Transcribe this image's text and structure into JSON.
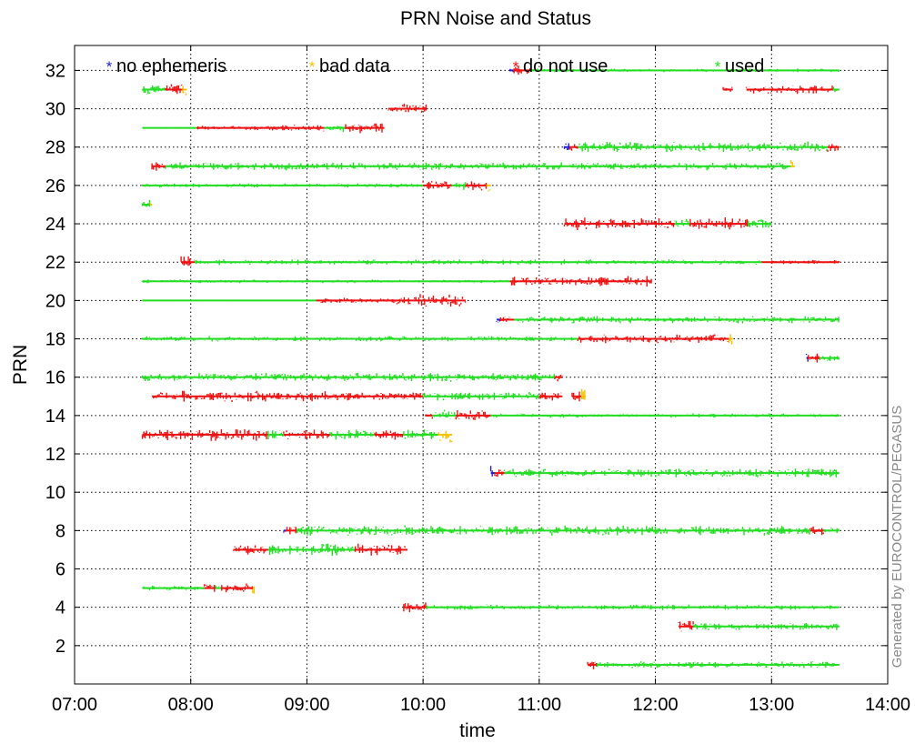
{
  "chart_data": {
    "type": "scatter",
    "title": "PRN Noise and Status",
    "xlabel": "time",
    "ylabel": "PRN",
    "credit": "Generated by EUROCONTROL/PEGASUS",
    "xlim": [
      7.0,
      14.0
    ],
    "ylim": [
      0,
      33.3
    ],
    "x_ticks": [
      "07:00",
      "08:00",
      "09:00",
      "10:00",
      "11:00",
      "12:00",
      "13:00",
      "14:00"
    ],
    "x_tick_hours": [
      7,
      8,
      9,
      10,
      11,
      12,
      13,
      14
    ],
    "y_ticks": [
      2,
      4,
      6,
      8,
      10,
      12,
      14,
      16,
      18,
      20,
      22,
      24,
      26,
      28,
      30,
      32
    ],
    "grid": true,
    "legend_position": "top",
    "colors": {
      "no ephemeris": "#1f1fd6",
      "bad data": "#f5c200",
      "do not use": "#ee1111",
      "used": "#22dd22"
    },
    "series": [
      {
        "name": "no ephemeris",
        "marker": "*"
      },
      {
        "name": "bad data",
        "marker": "*"
      },
      {
        "name": "do not use",
        "marker": "*"
      },
      {
        "name": "used",
        "marker": "*"
      }
    ],
    "tracks": [
      {
        "prn": 32,
        "segments": [
          {
            "start": "10:45",
            "end": "10:47",
            "status": "no ephemeris",
            "noise": 0.25
          },
          {
            "start": "10:47",
            "end": "10:56",
            "status": "do not use",
            "noise": 0.35
          },
          {
            "start": "10:56",
            "end": "13:35",
            "status": "used",
            "noise": 0.1
          }
        ]
      },
      {
        "prn": 31,
        "segments": [
          {
            "start": "07:35",
            "end": "07:47",
            "status": "used",
            "noise": 0.35
          },
          {
            "start": "07:47",
            "end": "07:56",
            "status": "do not use",
            "noise": 0.35
          },
          {
            "start": "07:56",
            "end": "07:58",
            "status": "bad data",
            "noise": 0.5
          },
          {
            "start": "12:35",
            "end": "12:40",
            "status": "do not use",
            "noise": 0.2
          },
          {
            "start": "12:47",
            "end": "13:32",
            "status": "do not use",
            "noise": 0.25
          },
          {
            "start": "13:32",
            "end": "13:35",
            "status": "used",
            "noise": 0.2
          }
        ]
      },
      {
        "prn": 30,
        "segments": [
          {
            "start": "09:42",
            "end": "10:02",
            "status": "do not use",
            "noise": 0.3
          }
        ]
      },
      {
        "prn": 29,
        "segments": [
          {
            "start": "07:35",
            "end": "08:03",
            "status": "used",
            "noise": 0.05
          },
          {
            "start": "08:03",
            "end": "08:40",
            "status": "do not use",
            "noise": 0.12
          },
          {
            "start": "08:40",
            "end": "09:09",
            "status": "do not use",
            "noise": 0.2
          },
          {
            "start": "09:09",
            "end": "09:20",
            "status": "used",
            "noise": 0.25
          },
          {
            "start": "09:20",
            "end": "09:40",
            "status": "do not use",
            "noise": 0.3
          }
        ]
      },
      {
        "prn": 28,
        "segments": [
          {
            "start": "11:13",
            "end": "11:16",
            "status": "no ephemeris",
            "noise": 0.25
          },
          {
            "start": "11:16",
            "end": "11:20",
            "status": "do not use",
            "noise": 0.25
          },
          {
            "start": "11:20",
            "end": "13:29",
            "status": "used",
            "noise": 0.3
          },
          {
            "start": "13:29",
            "end": "13:35",
            "status": "do not use",
            "noise": 0.3
          }
        ]
      },
      {
        "prn": 27,
        "segments": [
          {
            "start": "07:40",
            "end": "07:47",
            "status": "do not use",
            "noise": 0.3
          },
          {
            "start": "07:47",
            "end": "13:10",
            "status": "used",
            "noise": 0.22
          },
          {
            "start": "13:10",
            "end": "13:12",
            "status": "bad data",
            "noise": 0.5
          }
        ]
      },
      {
        "prn": 26,
        "segments": [
          {
            "start": "07:35",
            "end": "10:00",
            "status": "used",
            "noise": 0.12
          },
          {
            "start": "10:00",
            "end": "10:15",
            "status": "do not use",
            "noise": 0.25
          },
          {
            "start": "10:15",
            "end": "10:22",
            "status": "used",
            "noise": 0.25
          },
          {
            "start": "10:22",
            "end": "10:33",
            "status": "do not use",
            "noise": 0.3
          },
          {
            "start": "10:33",
            "end": "10:35",
            "status": "bad data",
            "noise": 0.5
          }
        ]
      },
      {
        "prn": 25,
        "segments": [
          {
            "start": "07:35",
            "end": "07:39",
            "status": "used",
            "noise": 0.25
          },
          {
            "start": "07:39",
            "end": "07:40",
            "status": "bad data",
            "noise": 0.35
          }
        ]
      },
      {
        "prn": 24,
        "segments": [
          {
            "start": "11:13",
            "end": "12:10",
            "status": "do not use",
            "noise": 0.35
          },
          {
            "start": "12:10",
            "end": "12:18",
            "status": "used",
            "noise": 0.35
          },
          {
            "start": "12:18",
            "end": "12:48",
            "status": "do not use",
            "noise": 0.35
          },
          {
            "start": "12:48",
            "end": "13:00",
            "status": "used",
            "noise": 0.3
          }
        ]
      },
      {
        "prn": 22,
        "segments": [
          {
            "start": "07:55",
            "end": "08:02",
            "status": "do not use",
            "noise": 0.35
          },
          {
            "start": "08:02",
            "end": "12:55",
            "status": "used",
            "noise": 0.15
          },
          {
            "start": "12:55",
            "end": "13:35",
            "status": "do not use",
            "noise": 0.12
          }
        ]
      },
      {
        "prn": 21,
        "segments": [
          {
            "start": "07:35",
            "end": "10:45",
            "status": "used",
            "noise": 0.1
          },
          {
            "start": "10:45",
            "end": "11:58",
            "status": "do not use",
            "noise": 0.3
          }
        ]
      },
      {
        "prn": 20,
        "segments": [
          {
            "start": "07:35",
            "end": "09:05",
            "status": "used",
            "noise": 0.05
          },
          {
            "start": "09:05",
            "end": "09:45",
            "status": "do not use",
            "noise": 0.15
          },
          {
            "start": "09:45",
            "end": "10:22",
            "status": "do not use",
            "noise": 0.35
          }
        ]
      },
      {
        "prn": 19,
        "segments": [
          {
            "start": "10:38",
            "end": "10:40",
            "status": "no ephemeris",
            "noise": 0.25
          },
          {
            "start": "10:40",
            "end": "10:47",
            "status": "do not use",
            "noise": 0.25
          },
          {
            "start": "10:47",
            "end": "13:35",
            "status": "used",
            "noise": 0.2
          }
        ]
      },
      {
        "prn": 18,
        "segments": [
          {
            "start": "07:35",
            "end": "11:20",
            "status": "used",
            "noise": 0.15
          },
          {
            "start": "11:20",
            "end": "12:38",
            "status": "do not use",
            "noise": 0.25
          },
          {
            "start": "12:38",
            "end": "12:40",
            "status": "bad data",
            "noise": 0.5
          }
        ]
      },
      {
        "prn": 17,
        "segments": [
          {
            "start": "13:18",
            "end": "13:19",
            "status": "no ephemeris",
            "noise": 0.3
          },
          {
            "start": "13:19",
            "end": "13:25",
            "status": "do not use",
            "noise": 0.3
          },
          {
            "start": "13:25",
            "end": "13:35",
            "status": "used",
            "noise": 0.25
          }
        ]
      },
      {
        "prn": 16,
        "segments": [
          {
            "start": "07:35",
            "end": "11:08",
            "status": "used",
            "noise": 0.25
          },
          {
            "start": "11:08",
            "end": "11:12",
            "status": "do not use",
            "noise": 0.3
          }
        ]
      },
      {
        "prn": 15,
        "segments": [
          {
            "start": "07:40",
            "end": "09:15",
            "status": "do not use",
            "noise": 0.3
          },
          {
            "start": "09:15",
            "end": "10:00",
            "status": "do not use",
            "noise": 0.25
          },
          {
            "start": "10:00",
            "end": "11:00",
            "status": "used",
            "noise": 0.25
          },
          {
            "start": "11:00",
            "end": "11:12",
            "status": "do not use",
            "noise": 0.35
          },
          {
            "start": "11:17",
            "end": "11:22",
            "status": "do not use",
            "noise": 0.3
          },
          {
            "start": "11:22",
            "end": "11:24",
            "status": "bad data",
            "noise": 0.5
          }
        ]
      },
      {
        "prn": 14,
        "segments": [
          {
            "start": "10:01",
            "end": "10:05",
            "status": "do not use",
            "noise": 0.25
          },
          {
            "start": "10:05",
            "end": "10:17",
            "status": "used",
            "noise": 0.3
          },
          {
            "start": "10:17",
            "end": "10:35",
            "status": "do not use",
            "noise": 0.3
          },
          {
            "start": "10:35",
            "end": "13:35",
            "status": "used",
            "noise": 0.12
          }
        ]
      },
      {
        "prn": 13,
        "segments": [
          {
            "start": "07:35",
            "end": "07:45",
            "status": "do not use",
            "noise": 0.35
          },
          {
            "start": "07:45",
            "end": "08:40",
            "status": "do not use",
            "noise": 0.35
          },
          {
            "start": "08:40",
            "end": "08:48",
            "status": "used",
            "noise": 0.3
          },
          {
            "start": "08:48",
            "end": "09:12",
            "status": "do not use",
            "noise": 0.3
          },
          {
            "start": "09:12",
            "end": "09:35",
            "status": "used",
            "noise": 0.3
          },
          {
            "start": "09:35",
            "end": "09:50",
            "status": "do not use",
            "noise": 0.3
          },
          {
            "start": "09:50",
            "end": "10:08",
            "status": "used",
            "noise": 0.3
          },
          {
            "start": "10:08",
            "end": "10:15",
            "status": "bad data",
            "noise": 0.5
          }
        ]
      },
      {
        "prn": 11,
        "segments": [
          {
            "start": "10:35",
            "end": "10:37",
            "status": "no ephemeris",
            "noise": 0.4
          },
          {
            "start": "10:37",
            "end": "10:42",
            "status": "do not use",
            "noise": 0.3
          },
          {
            "start": "10:42",
            "end": "13:35",
            "status": "used",
            "noise": 0.25
          }
        ]
      },
      {
        "prn": 8,
        "segments": [
          {
            "start": "08:48",
            "end": "08:49",
            "status": "no ephemeris",
            "noise": 0.35
          },
          {
            "start": "08:49",
            "end": "08:55",
            "status": "do not use",
            "noise": 0.3
          },
          {
            "start": "08:55",
            "end": "13:20",
            "status": "used",
            "noise": 0.3
          },
          {
            "start": "13:20",
            "end": "13:27",
            "status": "do not use",
            "noise": 0.25
          },
          {
            "start": "13:27",
            "end": "13:35",
            "status": "used",
            "noise": 0.2
          }
        ]
      },
      {
        "prn": 7,
        "segments": [
          {
            "start": "08:22",
            "end": "08:40",
            "status": "do not use",
            "noise": 0.3
          },
          {
            "start": "08:40",
            "end": "09:25",
            "status": "used",
            "noise": 0.35
          },
          {
            "start": "09:25",
            "end": "09:52",
            "status": "do not use",
            "noise": 0.35
          }
        ]
      },
      {
        "prn": 5,
        "segments": [
          {
            "start": "07:35",
            "end": "08:07",
            "status": "used",
            "noise": 0.15
          },
          {
            "start": "08:07",
            "end": "08:13",
            "status": "do not use",
            "noise": 0.3
          },
          {
            "start": "08:13",
            "end": "08:16",
            "status": "used",
            "noise": 0.3
          },
          {
            "start": "08:16",
            "end": "08:32",
            "status": "do not use",
            "noise": 0.3
          },
          {
            "start": "08:32",
            "end": "08:33",
            "status": "bad data",
            "noise": 0.4
          }
        ]
      },
      {
        "prn": 4,
        "segments": [
          {
            "start": "09:50",
            "end": "10:02",
            "status": "do not use",
            "noise": 0.3
          },
          {
            "start": "10:02",
            "end": "13:35",
            "status": "used",
            "noise": 0.15
          }
        ]
      },
      {
        "prn": 3,
        "segments": [
          {
            "start": "12:12",
            "end": "12:20",
            "status": "do not use",
            "noise": 0.35
          },
          {
            "start": "12:20",
            "end": "13:35",
            "status": "used",
            "noise": 0.2
          }
        ]
      },
      {
        "prn": 1,
        "segments": [
          {
            "start": "11:25",
            "end": "11:30",
            "status": "do not use",
            "noise": 0.25
          },
          {
            "start": "11:30",
            "end": "13:35",
            "status": "used",
            "noise": 0.2
          }
        ]
      }
    ]
  }
}
